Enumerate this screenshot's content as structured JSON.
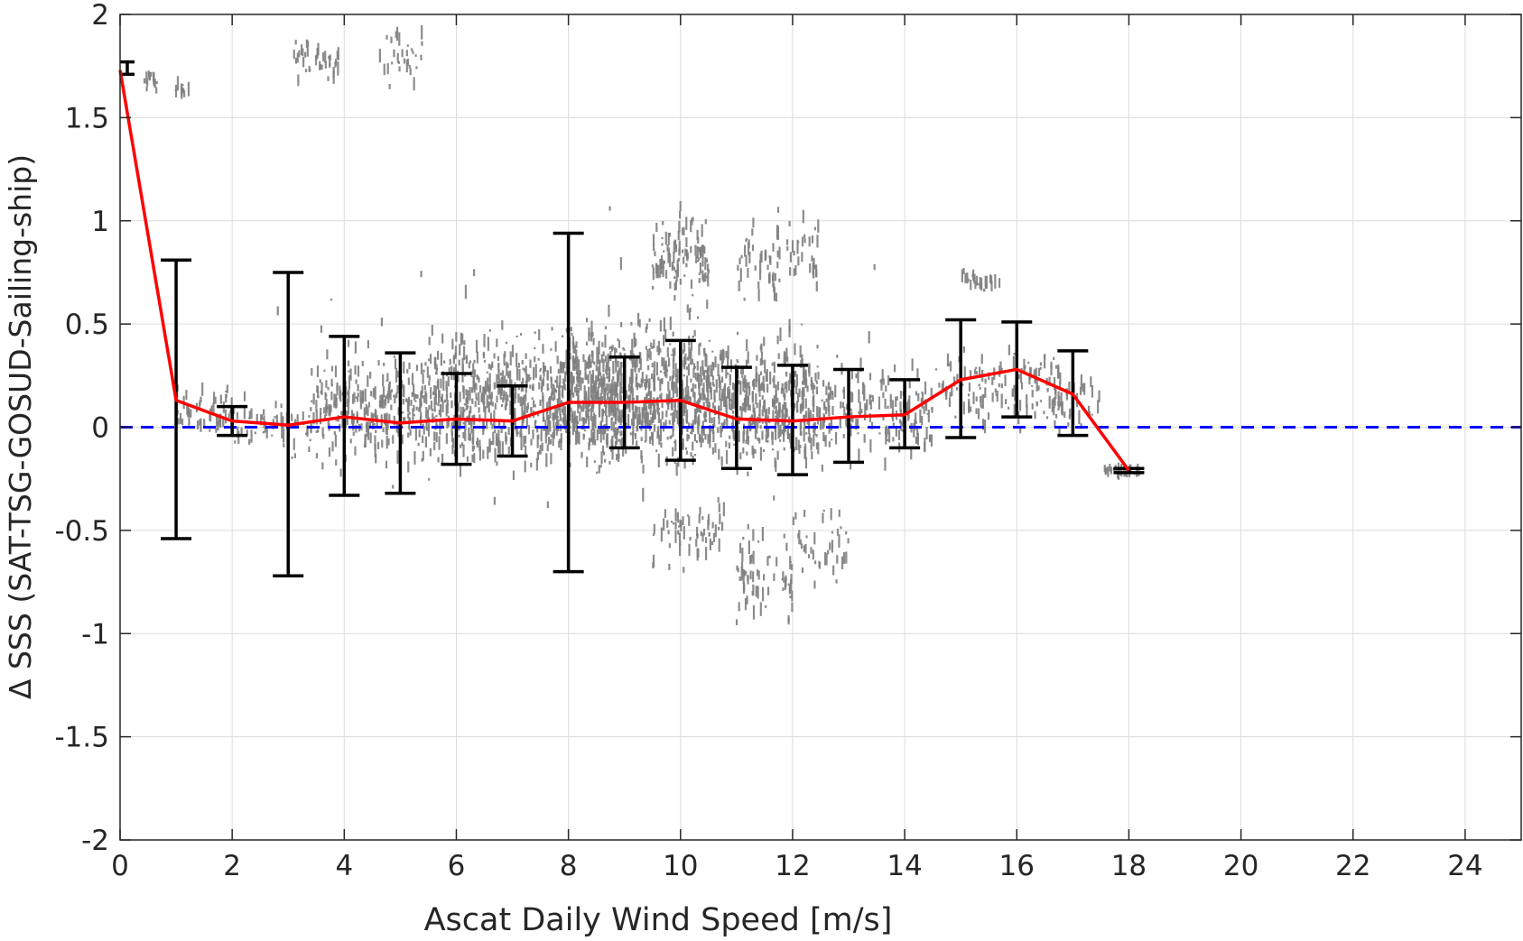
{
  "chart_data": {
    "type": "scatter",
    "title": "",
    "xlabel": "Ascat Daily Wind Speed [m/s]",
    "ylabel": "Δ SSS (SAT-TSG-GOSUD-Sailing-ship)",
    "xlim": [
      0,
      25
    ],
    "ylim": [
      -2,
      2
    ],
    "xticks": [
      0,
      2,
      4,
      6,
      8,
      10,
      12,
      14,
      16,
      18,
      20,
      22,
      24
    ],
    "yticks": [
      -2,
      -1.5,
      -1,
      -0.5,
      0,
      0.5,
      1,
      1.5,
      2
    ],
    "grid": true,
    "reference_line": {
      "y": 0,
      "color": "#0000ff",
      "style": "dashed"
    },
    "mean_line": {
      "color": "#ff0000",
      "x": [
        0,
        1,
        2,
        3,
        4,
        5,
        6,
        7,
        8,
        9,
        10,
        11,
        12,
        13,
        14,
        15,
        16,
        17,
        18
      ],
      "y": [
        1.73,
        0.13,
        0.03,
        0.01,
        0.05,
        0.02,
        0.04,
        0.03,
        0.12,
        0.12,
        0.13,
        0.04,
        0.03,
        0.05,
        0.06,
        0.23,
        0.28,
        0.16,
        -0.21
      ]
    },
    "error_bars": {
      "color": "#000000",
      "x": [
        0,
        1,
        2,
        3,
        4,
        5,
        6,
        7,
        8,
        9,
        10,
        11,
        12,
        13,
        14,
        15,
        16,
        17,
        18
      ],
      "lower": [
        1.71,
        -0.54,
        -0.04,
        -0.72,
        -0.33,
        -0.32,
        -0.18,
        -0.14,
        -0.7,
        -0.1,
        -0.16,
        -0.2,
        -0.23,
        -0.17,
        -0.1,
        -0.05,
        0.05,
        -0.04,
        -0.22
      ],
      "upper": [
        1.77,
        0.81,
        0.1,
        0.75,
        0.44,
        0.36,
        0.26,
        0.2,
        0.94,
        0.34,
        0.42,
        0.29,
        0.3,
        0.28,
        0.23,
        0.52,
        0.51,
        0.37,
        -0.2
      ]
    },
    "scatter_color": "#808080",
    "scatter_clusters": [
      {
        "x": [
          0.4,
          0.7
        ],
        "y": [
          1.6,
          1.75
        ],
        "n": 14
      },
      {
        "x": [
          0.9,
          1.3
        ],
        "y": [
          1.55,
          1.7
        ],
        "n": 10
      },
      {
        "x": [
          3.1,
          3.9
        ],
        "y": [
          1.65,
          1.9
        ],
        "n": 40
      },
      {
        "x": [
          4.6,
          5.4
        ],
        "y": [
          1.6,
          2.0
        ],
        "n": 30
      },
      {
        "x": [
          1.0,
          2.0
        ],
        "y": [
          -0.1,
          0.25
        ],
        "n": 50
      },
      {
        "x": [
          2.0,
          3.5
        ],
        "y": [
          -0.15,
          0.2
        ],
        "n": 60
      },
      {
        "x": [
          3.5,
          5.5
        ],
        "y": [
          -0.25,
          0.45
        ],
        "n": 260
      },
      {
        "x": [
          5.5,
          8.0
        ],
        "y": [
          -0.3,
          0.55
        ],
        "n": 520
      },
      {
        "x": [
          8.0,
          10.5
        ],
        "y": [
          -0.3,
          0.6
        ],
        "n": 750
      },
      {
        "x": [
          9.5,
          10.5
        ],
        "y": [
          0.5,
          1.15
        ],
        "n": 110
      },
      {
        "x": [
          9.5,
          10.8
        ],
        "y": [
          -0.75,
          -0.3
        ],
        "n": 60
      },
      {
        "x": [
          10.5,
          12.5
        ],
        "y": [
          -0.3,
          0.55
        ],
        "n": 420
      },
      {
        "x": [
          11.0,
          12.5
        ],
        "y": [
          0.5,
          1.15
        ],
        "n": 80
      },
      {
        "x": [
          11.0,
          12.0
        ],
        "y": [
          -1.05,
          -0.4
        ],
        "n": 70
      },
      {
        "x": [
          12.0,
          13.0
        ],
        "y": [
          -0.85,
          -0.3
        ],
        "n": 40
      },
      {
        "x": [
          12.5,
          14.5
        ],
        "y": [
          -0.2,
          0.35
        ],
        "n": 170
      },
      {
        "x": [
          14.5,
          16.8
        ],
        "y": [
          -0.05,
          0.45
        ],
        "n": 130
      },
      {
        "x": [
          15.0,
          15.7
        ],
        "y": [
          0.65,
          0.78
        ],
        "n": 25
      },
      {
        "x": [
          16.5,
          17.5
        ],
        "y": [
          -0.05,
          0.3
        ],
        "n": 40
      },
      {
        "x": [
          17.5,
          18.2
        ],
        "y": [
          -0.24,
          -0.18
        ],
        "n": 25
      },
      {
        "x": [
          2.5,
          13.5
        ],
        "y": [
          -0.95,
          1.25
        ],
        "n": 70
      }
    ]
  }
}
